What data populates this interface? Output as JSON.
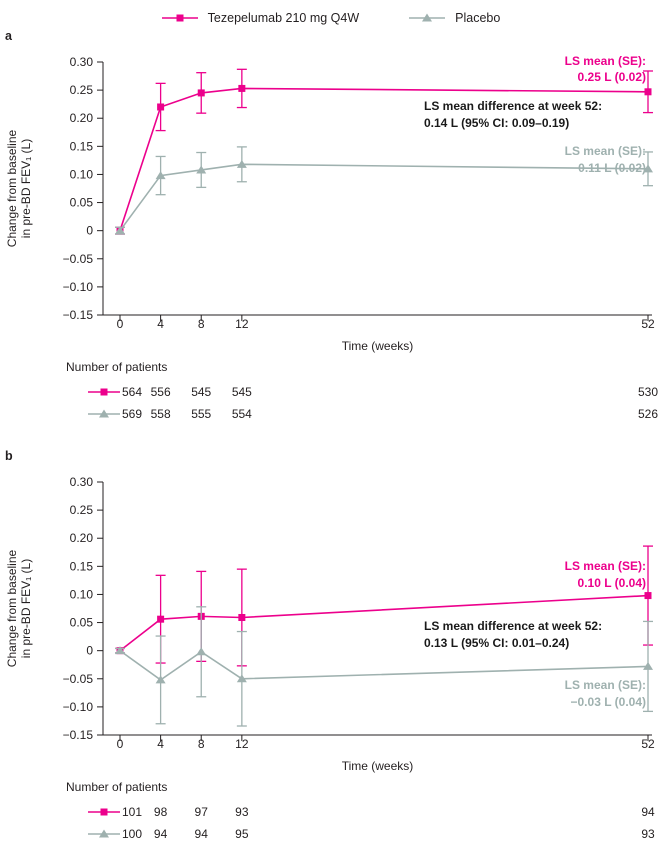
{
  "legend": {
    "items": [
      {
        "label": "Tezepelumab 210 mg Q4W",
        "color": "#ec008c",
        "marker": "square"
      },
      {
        "label": "Placebo",
        "color": "#9fb1af",
        "marker": "triangle"
      }
    ]
  },
  "chart_data": [
    {
      "type": "line",
      "panel_label": "a",
      "xlabel": "Time (weeks)",
      "ylabel_lines": [
        "Change from baseline",
        "in pre-BD FEV₁ (L)"
      ],
      "x": [
        0,
        4,
        8,
        12,
        52
      ],
      "xtick_labels": [
        "0",
        "4",
        "8",
        "12",
        "52"
      ],
      "xlim": [
        0,
        52
      ],
      "ylim": [
        -0.15,
        0.3
      ],
      "yticks": [
        0.3,
        0.25,
        0.2,
        0.15,
        0.1,
        0.05,
        0,
        -0.05,
        -0.1,
        -0.15
      ],
      "ytick_labels": [
        "0.30",
        "0.25",
        "0.20",
        "0.15",
        "0.10",
        "0.05",
        "0",
        "−0.05",
        "−0.10",
        "−0.15"
      ],
      "grid": false,
      "series": [
        {
          "name": "Tezepelumab 210 mg Q4W",
          "color": "#ec008c",
          "marker": "square",
          "values": [
            0,
            0.22,
            0.245,
            0.253,
            0.247
          ],
          "err": [
            0.006,
            0.042,
            0.036,
            0.034,
            0.037
          ]
        },
        {
          "name": "Placebo",
          "color": "#9fb1af",
          "marker": "triangle",
          "values": [
            0,
            0.098,
            0.108,
            0.118,
            0.11
          ],
          "err": [
            0.006,
            0.034,
            0.031,
            0.031,
            0.03
          ]
        }
      ],
      "annotations": [
        {
          "id": "tezepelumab-ls-mean",
          "lines": [
            "LS mean (SE):",
            "0.25 L (0.02)"
          ],
          "color": "#ec008c"
        },
        {
          "id": "ls-mean-difference",
          "lines": [
            "LS mean difference at week 52:",
            "0.14 L (95% CI: 0.09–0.19)"
          ],
          "color": "#1a1a1a"
        },
        {
          "id": "placebo-ls-mean",
          "lines": [
            "LS mean (SE):",
            "0.11 L (0.02)"
          ],
          "color": "#9fb1af"
        }
      ],
      "patients": {
        "title": "Number of patients",
        "rows": [
          {
            "series": "Tezepelumab 210 mg Q4W",
            "values": [
              "564",
              "556",
              "545",
              "545",
              "530"
            ]
          },
          {
            "series": "Placebo",
            "values": [
              "569",
              "558",
              "555",
              "554",
              "526"
            ]
          }
        ]
      }
    },
    {
      "type": "line",
      "panel_label": "b",
      "xlabel": "Time (weeks)",
      "ylabel_lines": [
        "Change from baseline",
        "in pre-BD FEV₁ (L)"
      ],
      "x": [
        0,
        4,
        8,
        12,
        52
      ],
      "xtick_labels": [
        "0",
        "4",
        "8",
        "12",
        "52"
      ],
      "xlim": [
        0,
        52
      ],
      "ylim": [
        -0.15,
        0.3
      ],
      "yticks": [
        0.3,
        0.25,
        0.2,
        0.15,
        0.1,
        0.05,
        0,
        -0.05,
        -0.1,
        -0.15
      ],
      "ytick_labels": [
        "0.30",
        "0.25",
        "0.20",
        "0.15",
        "0.10",
        "0.05",
        "0",
        "−0.05",
        "−0.10",
        "−0.15"
      ],
      "grid": false,
      "series": [
        {
          "name": "Tezepelumab 210 mg Q4W",
          "color": "#ec008c",
          "marker": "square",
          "values": [
            0,
            0.056,
            0.061,
            0.059,
            0.098
          ],
          "err": [
            0.004,
            0.078,
            0.08,
            0.086,
            0.088
          ]
        },
        {
          "name": "Placebo",
          "color": "#9fb1af",
          "marker": "triangle",
          "values": [
            0,
            -0.052,
            -0.002,
            -0.05,
            -0.028
          ],
          "err": [
            0.004,
            0.078,
            0.08,
            0.084,
            0.08
          ]
        }
      ],
      "annotations": [
        {
          "id": "tezepelumab-ls-mean",
          "lines": [
            "LS mean (SE):",
            "0.10 L (0.04)"
          ],
          "color": "#ec008c"
        },
        {
          "id": "ls-mean-difference",
          "lines": [
            "LS mean difference at week 52:",
            "0.13 L (95% CI: 0.01–0.24)"
          ],
          "color": "#1a1a1a"
        },
        {
          "id": "placebo-ls-mean",
          "lines": [
            "LS mean (SE):",
            "−0.03 L (0.04)"
          ],
          "color": "#9fb1af"
        }
      ],
      "patients": {
        "title": "Number of patients",
        "rows": [
          {
            "series": "Tezepelumab 210 mg Q4W",
            "values": [
              "101",
              "98",
              "97",
              "93",
              "94"
            ]
          },
          {
            "series": "Placebo",
            "values": [
              "100",
              "94",
              "94",
              "95",
              "93"
            ]
          }
        ]
      }
    }
  ]
}
